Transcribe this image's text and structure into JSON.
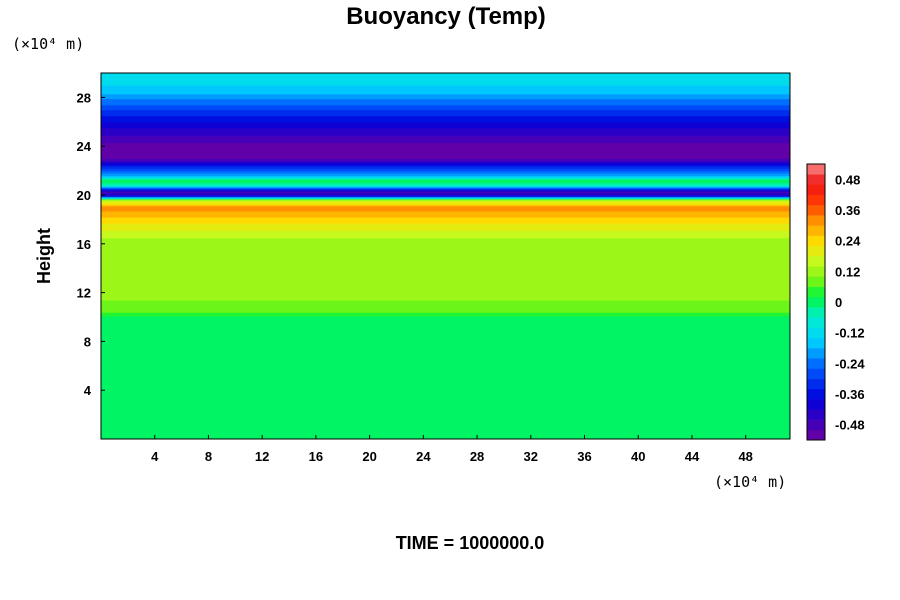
{
  "chart_data": {
    "type": "heatmap",
    "title": "Buoyancy (Temp)",
    "ylabel": "Height",
    "xlabel": "",
    "x_unit": "(×10⁴ m)",
    "y_unit": "(×10⁴ m)",
    "xlim": [
      0,
      51.3
    ],
    "ylim": [
      0,
      30
    ],
    "xticks": [
      "4",
      "8",
      "12",
      "16",
      "20",
      "24",
      "28",
      "32",
      "36",
      "40",
      "44",
      "48"
    ],
    "yticks": [
      "4",
      "8",
      "12",
      "16",
      "20",
      "24",
      "28"
    ],
    "colorbar": {
      "range": [
        -0.54,
        0.54
      ],
      "step": 0.04,
      "tick_labels": [
        "0.48",
        "0.36",
        "0.24",
        "0.12",
        "0",
        "-0.12",
        "-0.24",
        "-0.36",
        "-0.48"
      ]
    },
    "vertical_profile": [
      {
        "height": 0,
        "value": 0.0
      },
      {
        "height": 10,
        "value": 0.0
      },
      {
        "height": 10.5,
        "value": 0.07
      },
      {
        "height": 12,
        "value": 0.12
      },
      {
        "height": 14,
        "value": 0.1
      },
      {
        "height": 16.5,
        "value": 0.14
      },
      {
        "height": 18,
        "value": 0.24
      },
      {
        "height": 19,
        "value": 0.32
      },
      {
        "height": 19.6,
        "value": 0.14
      },
      {
        "height": 20,
        "value": -0.42
      },
      {
        "height": 20.3,
        "value": -0.48
      },
      {
        "height": 20.8,
        "value": -0.06
      },
      {
        "height": 21.2,
        "value": 0.02
      },
      {
        "height": 21.6,
        "value": -0.18
      },
      {
        "height": 22.3,
        "value": -0.32
      },
      {
        "height": 23,
        "value": -0.5
      },
      {
        "height": 24,
        "value": -0.52
      },
      {
        "height": 25.5,
        "value": -0.42
      },
      {
        "height": 27,
        "value": -0.3
      },
      {
        "height": 28.5,
        "value": -0.16
      },
      {
        "height": 30,
        "value": -0.1
      }
    ],
    "time_label": "TIME = 1000000.0"
  }
}
